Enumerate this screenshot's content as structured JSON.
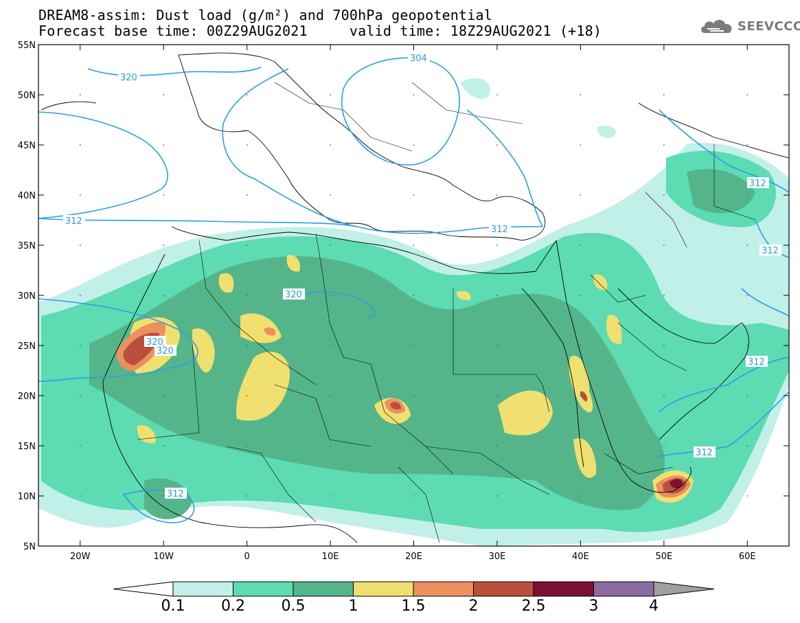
{
  "title_line1": "DREAM8-assim: Dust load (g/m²) and 700hPa geopotential",
  "title_line2": "Forecast base time: 00Z29AUG2021     valid time: 18Z29AUG2021 (+18)",
  "logo_text": "SEEVCCC",
  "map": {
    "lon_range": [
      -25,
      65
    ],
    "lat_range": [
      5,
      55
    ],
    "lat_ticks": [
      "55N",
      "50N",
      "45N",
      "40N",
      "35N",
      "30N",
      "25N",
      "20N",
      "15N",
      "10N",
      "5N"
    ],
    "lon_ticks": [
      "20W",
      "10W",
      "0",
      "10E",
      "20E",
      "30E",
      "40E",
      "50E",
      "60E"
    ]
  },
  "contour_labels": [
    "320",
    "304",
    "312",
    "312",
    "320",
    "320",
    "320",
    "312",
    "312",
    "312",
    "312",
    "312"
  ],
  "colorbar": {
    "levels": [
      "0.1",
      "0.2",
      "0.5",
      "1",
      "1.5",
      "2",
      "2.5",
      "3",
      "4"
    ],
    "colors": [
      "#c0f0e8",
      "#5ddbb2",
      "#55b58a",
      "#f0e070",
      "#ec9060",
      "#b8503c",
      "#7c1030",
      "#8c6ca0",
      "#a0a0a0"
    ]
  }
}
